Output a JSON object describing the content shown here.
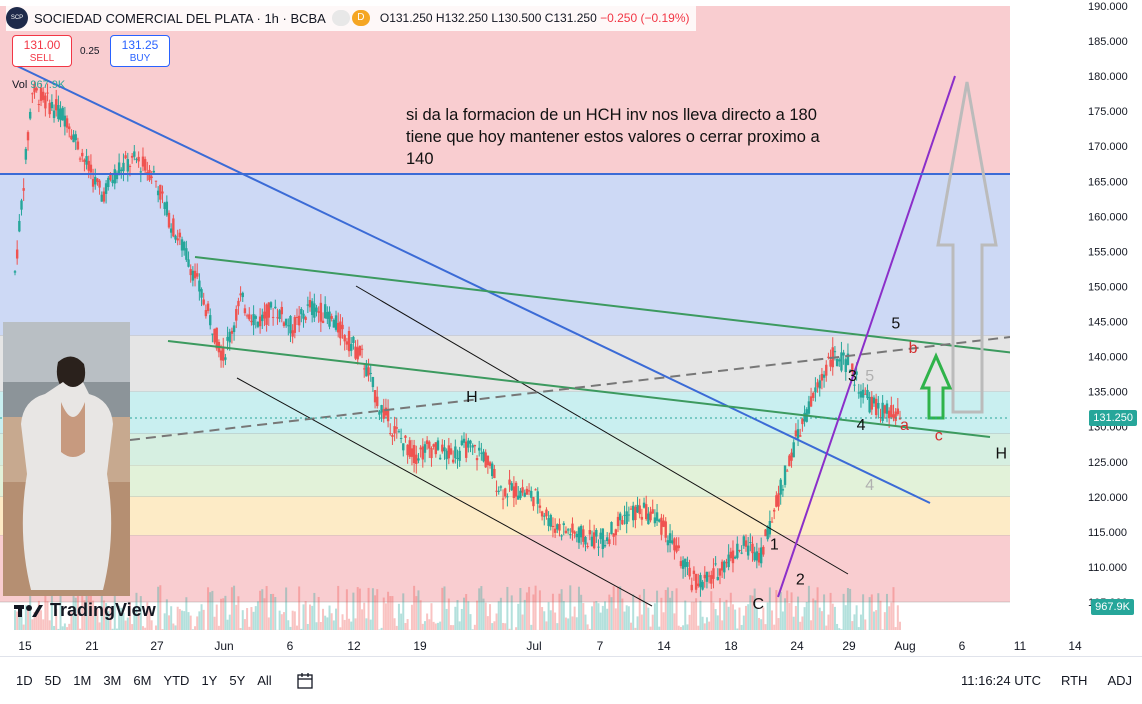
{
  "header": {
    "title": "SOCIEDAD COMERCIAL DEL PLATA · 1h · BCBA",
    "logo_text": "SCP",
    "open": "O131.250",
    "high": "H132.250",
    "low": "L130.500",
    "close": "C131.250",
    "change": "−0.250 (−0.19%)",
    "d_badge": "D"
  },
  "trade": {
    "sell_price": "131.00",
    "sell_label": "SELL",
    "spread": "0.25",
    "buy_price": "131.25",
    "buy_label": "BUY"
  },
  "volume": {
    "label": "Vol",
    "value": "967.9K"
  },
  "annotation": "si da la formacion de un HCH inv nos lleva directo a 180 tiene que hoy mantener estos valores o cerrar proximo a 140",
  "brand": "TradingView",
  "toolbar": {
    "timeframes": [
      "1D",
      "5D",
      "1M",
      "3M",
      "6M",
      "YTD",
      "1Y",
      "5Y",
      "All"
    ],
    "time": "11:16:24 UTC",
    "rth": "RTH",
    "adj": "ADJ"
  },
  "colors": {
    "up": "#26a69a",
    "down": "#ef5350",
    "accent": "#2962ff"
  },
  "chart_data": {
    "type": "candlestick",
    "y_ticks": [
      105,
      110,
      115,
      120,
      125,
      130,
      135,
      140,
      145,
      150,
      155,
      160,
      165,
      170,
      175,
      180,
      185,
      190
    ],
    "ylim": [
      105,
      190
    ],
    "x_ticks": [
      "15",
      "21",
      "27",
      "Jun",
      "6",
      "12",
      "19",
      "Jul",
      "7",
      "14",
      "18",
      "24",
      "29",
      "Aug",
      "6",
      "11",
      "14"
    ],
    "last_price": "131.250",
    "volume_tag": "967.9K",
    "price_path": [
      [
        15,
        152
      ],
      [
        17,
        178
      ],
      [
        19,
        176
      ],
      [
        21,
        174
      ],
      [
        23,
        168
      ],
      [
        25,
        163
      ],
      [
        27,
        167
      ],
      [
        29,
        168
      ],
      [
        31,
        166
      ],
      [
        33,
        159
      ],
      [
        35,
        154
      ],
      [
        37,
        147
      ],
      [
        39,
        140
      ],
      [
        41,
        148
      ],
      [
        43,
        145
      ],
      [
        45,
        147
      ],
      [
        47,
        144
      ],
      [
        49,
        147
      ],
      [
        51,
        146
      ],
      [
        53,
        143
      ],
      [
        55,
        140
      ],
      [
        57,
        133
      ],
      [
        59,
        129
      ],
      [
        61,
        126
      ],
      [
        63,
        127
      ],
      [
        65,
        126
      ],
      [
        67,
        127
      ],
      [
        69,
        126
      ],
      [
        71,
        121
      ],
      [
        73,
        121
      ],
      [
        75,
        120
      ],
      [
        77,
        116
      ],
      [
        79,
        115
      ],
      [
        81,
        114
      ],
      [
        83,
        114
      ],
      [
        85,
        117
      ],
      [
        87,
        118
      ],
      [
        89,
        117
      ],
      [
        91,
        113
      ],
      [
        93,
        108
      ],
      [
        95,
        108
      ],
      [
        97,
        111
      ],
      [
        99,
        113
      ],
      [
        101,
        112
      ],
      [
        103,
        120
      ],
      [
        105,
        128
      ],
      [
        107,
        134
      ],
      [
        109,
        140
      ],
      [
        111,
        139
      ],
      [
        113,
        134
      ],
      [
        115,
        132
      ],
      [
        117,
        131.25
      ]
    ],
    "fib_bands": [
      {
        "from": 166,
        "to": 190,
        "color": "#f9cdd0"
      },
      {
        "from": 143,
        "to": 166,
        "color": "#cdd9f5"
      },
      {
        "from": 135,
        "to": 143,
        "color": "#e5e5e5"
      },
      {
        "from": 129,
        "to": 135,
        "color": "#c9eff0"
      },
      {
        "from": 124.5,
        "to": 129,
        "color": "#d6efe1"
      },
      {
        "from": 120,
        "to": 124.5,
        "color": "#e2f2d9"
      },
      {
        "from": 114.5,
        "to": 120,
        "color": "#fdebc6"
      },
      {
        "from": 105,
        "to": 114.5,
        "color": "#f9cdd0"
      }
    ],
    "labels": [
      {
        "text": "H",
        "price": 133.5,
        "x": 67
      },
      {
        "text": "H",
        "price": 125.5,
        "x": 128
      },
      {
        "text": "1",
        "price": 112.5,
        "x": 102
      },
      {
        "text": "2",
        "price": 107.5,
        "x": 105
      },
      {
        "text": "C",
        "price": 104,
        "x": 100
      },
      {
        "text": "3",
        "price": 136.5,
        "x": 111
      },
      {
        "text": "4",
        "price": 129.5,
        "x": 112
      },
      {
        "text": "5",
        "price": 144,
        "x": 116
      },
      {
        "text": "b",
        "price": 140.5,
        "x": 118
      },
      {
        "text": "a",
        "price": 129.5,
        "x": 117
      },
      {
        "text": "c",
        "price": 128,
        "x": 121
      },
      {
        "text": "5",
        "price": 136.5,
        "x": 113
      },
      {
        "text": "4",
        "price": 121,
        "x": 113
      }
    ]
  }
}
